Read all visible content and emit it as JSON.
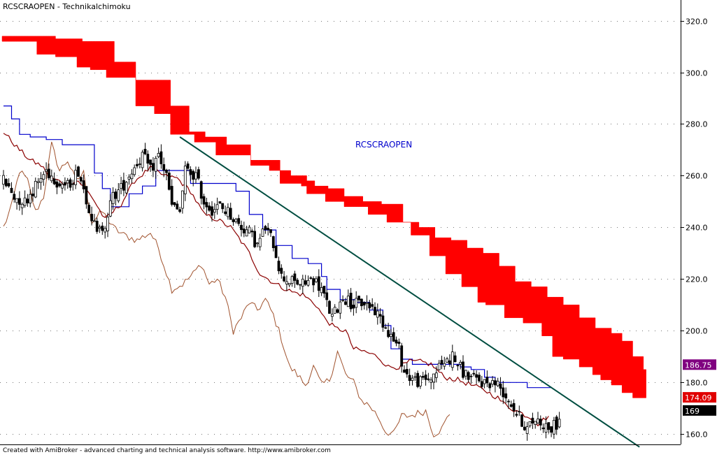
{
  "chart_data": {
    "type": "candlestick",
    "title": "RCSCRAOPEN - Technikalchimoku",
    "annotation": "RCSCRAOPEN",
    "footer": "Created with AmiBroker - advanced charting and technical analysis software. http://www.amibroker.com",
    "ylim": [
      156,
      328
    ],
    "y_ticks": [
      {
        "value": 320,
        "label": "320.0"
      },
      {
        "value": 300,
        "label": "300.0"
      },
      {
        "value": 280,
        "label": "280.0"
      },
      {
        "value": 260,
        "label": "260.0"
      },
      {
        "value": 240,
        "label": "240.0"
      },
      {
        "value": 220,
        "label": "220.0"
      },
      {
        "value": 200,
        "label": "200.0"
      },
      {
        "value": 180,
        "label": "180.0"
      },
      {
        "value": 160,
        "label": "160.0"
      }
    ],
    "grid": true,
    "n_bars": 214,
    "value_badges": [
      {
        "label": "186.75",
        "value": 186.75,
        "color": "#800080"
      },
      {
        "label": "174.09",
        "value": 174.09,
        "color": "#e00000"
      },
      {
        "label": "169",
        "value": 169,
        "color": "#000000"
      }
    ],
    "colors": {
      "cloud": "#ff0000",
      "tenkan": "#8b0000",
      "kijun": "#0000cc",
      "chikou": "#a0522d",
      "trendline": "#004d40",
      "grid": "#777777"
    },
    "cloud": {
      "span_a_keys": [
        [
          0,
          312
        ],
        [
          8,
          312
        ],
        [
          13,
          307
        ],
        [
          20,
          306
        ],
        [
          28,
          302
        ],
        [
          33,
          301
        ],
        [
          39,
          298
        ],
        [
          50,
          287
        ],
        [
          57,
          284
        ],
        [
          63,
          276
        ],
        [
          72,
          273
        ],
        [
          80,
          268
        ],
        [
          93,
          266
        ],
        [
          104,
          257
        ],
        [
          112,
          256
        ],
        [
          114,
          253
        ],
        [
          121,
          250
        ],
        [
          128,
          248
        ],
        [
          137,
          245
        ],
        [
          144,
          242
        ],
        [
          153,
          237
        ],
        [
          160,
          229
        ],
        [
          166,
          222
        ],
        [
          172,
          217
        ],
        [
          178,
          211
        ],
        [
          181,
          210
        ],
        [
          188,
          205
        ],
        [
          195,
          203
        ],
        [
          202,
          198
        ],
        [
          206,
          190
        ],
        [
          210,
          189
        ],
        [
          216,
          186
        ],
        [
          218,
          186
        ],
        [
          221,
          183
        ],
        [
          224,
          181
        ],
        [
          228,
          179
        ],
        [
          232,
          176
        ],
        [
          236,
          174
        ],
        [
          240,
          174
        ]
      ],
      "span_b_keys": [
        [
          0,
          314
        ],
        [
          15,
          314
        ],
        [
          20,
          313
        ],
        [
          30,
          312
        ],
        [
          42,
          304
        ],
        [
          50,
          297
        ],
        [
          56,
          297
        ],
        [
          63,
          287
        ],
        [
          70,
          277
        ],
        [
          76,
          275
        ],
        [
          84,
          272
        ],
        [
          93,
          264
        ],
        [
          100,
          262
        ],
        [
          108,
          260
        ],
        [
          114,
          258
        ],
        [
          117,
          256
        ],
        [
          122,
          255
        ],
        [
          128,
          252
        ],
        [
          135,
          250
        ],
        [
          142,
          249
        ],
        [
          150,
          242
        ],
        [
          156,
          240
        ],
        [
          162,
          236
        ],
        [
          168,
          235
        ],
        [
          174,
          232
        ],
        [
          180,
          230
        ],
        [
          186,
          225
        ],
        [
          192,
          219
        ],
        [
          198,
          217
        ],
        [
          204,
          213
        ],
        [
          210,
          210
        ],
        [
          216,
          205
        ],
        [
          222,
          201
        ],
        [
          228,
          199
        ],
        [
          232,
          196
        ],
        [
          236,
          190
        ],
        [
          240,
          185
        ]
      ]
    },
    "tenkan_keys": [
      [
        0,
        277
      ],
      [
        5,
        271
      ],
      [
        10,
        266
      ],
      [
        14,
        264
      ],
      [
        18,
        259
      ],
      [
        23,
        257
      ],
      [
        28,
        258
      ],
      [
        33,
        252
      ],
      [
        38,
        243
      ],
      [
        44,
        249
      ],
      [
        49,
        258
      ],
      [
        55,
        263
      ],
      [
        60,
        260
      ],
      [
        65,
        259
      ],
      [
        70,
        254
      ],
      [
        75,
        245
      ],
      [
        80,
        243
      ],
      [
        85,
        240
      ],
      [
        88,
        236
      ],
      [
        92,
        230
      ],
      [
        96,
        222
      ],
      [
        102,
        218
      ],
      [
        108,
        215
      ],
      [
        112,
        214
      ],
      [
        117,
        210
      ],
      [
        120,
        205
      ],
      [
        124,
        201
      ],
      [
        128,
        200
      ],
      [
        131,
        193
      ],
      [
        135,
        192
      ],
      [
        140,
        190
      ],
      [
        144,
        186
      ],
      [
        148,
        186
      ],
      [
        152,
        188
      ],
      [
        156,
        188
      ],
      [
        160,
        187
      ],
      [
        165,
        182
      ],
      [
        170,
        181
      ],
      [
        175,
        179
      ],
      [
        180,
        177
      ],
      [
        185,
        174
      ],
      [
        187,
        172
      ],
      [
        190,
        170
      ],
      [
        194,
        168
      ],
      [
        198,
        166
      ],
      [
        200,
        164
      ],
      [
        204,
        167
      ]
    ],
    "kijun_keys": [
      [
        0,
        287
      ],
      [
        3,
        282
      ],
      [
        6,
        276
      ],
      [
        10,
        275
      ],
      [
        16,
        274
      ],
      [
        22,
        272
      ],
      [
        30,
        272
      ],
      [
        34,
        261
      ],
      [
        37,
        255
      ],
      [
        40,
        248
      ],
      [
        47,
        253
      ],
      [
        52,
        256
      ],
      [
        57,
        262
      ],
      [
        66,
        262
      ],
      [
        70,
        257
      ],
      [
        80,
        257
      ],
      [
        87,
        254
      ],
      [
        92,
        245
      ],
      [
        97,
        239
      ],
      [
        102,
        233
      ],
      [
        108,
        228
      ],
      [
        114,
        226
      ],
      [
        119,
        221
      ],
      [
        121,
        216
      ],
      [
        126,
        212
      ],
      [
        132,
        211
      ],
      [
        137,
        208
      ],
      [
        142,
        202
      ],
      [
        145,
        193
      ],
      [
        149,
        189
      ],
      [
        153,
        187
      ],
      [
        157,
        187
      ],
      [
        161,
        187
      ],
      [
        165,
        187
      ],
      [
        171,
        186
      ],
      [
        175,
        185
      ],
      [
        180,
        182
      ],
      [
        184,
        180
      ],
      [
        190,
        180
      ],
      [
        196,
        178
      ],
      [
        204,
        178
      ]
    ],
    "chikou_keys": [
      [
        0,
        240
      ],
      [
        3,
        248
      ],
      [
        6,
        262
      ],
      [
        9,
        258
      ],
      [
        12,
        246
      ],
      [
        15,
        252
      ],
      [
        18,
        272
      ],
      [
        21,
        262
      ],
      [
        24,
        266
      ],
      [
        27,
        258
      ],
      [
        30,
        261
      ],
      [
        33,
        242
      ],
      [
        37,
        246
      ],
      [
        41,
        240
      ],
      [
        45,
        237
      ],
      [
        50,
        235
      ],
      [
        55,
        238
      ],
      [
        58,
        232
      ],
      [
        63,
        216
      ],
      [
        67,
        218
      ],
      [
        71,
        222
      ],
      [
        74,
        226
      ],
      [
        77,
        218
      ],
      [
        80,
        220
      ],
      [
        83,
        213
      ],
      [
        86,
        200
      ],
      [
        89,
        205
      ],
      [
        92,
        211
      ],
      [
        95,
        208
      ],
      [
        98,
        212
      ],
      [
        101,
        206
      ],
      [
        104,
        197
      ],
      [
        107,
        186
      ],
      [
        110,
        183
      ],
      [
        113,
        179
      ],
      [
        116,
        186
      ],
      [
        119,
        179
      ],
      [
        122,
        181
      ],
      [
        125,
        192
      ],
      [
        128,
        183
      ],
      [
        131,
        180
      ],
      [
        134,
        173
      ],
      [
        137,
        171
      ],
      [
        140,
        167
      ],
      [
        143,
        161
      ],
      [
        146,
        160
      ],
      [
        149,
        167
      ],
      [
        152,
        167
      ],
      [
        155,
        168
      ],
      [
        158,
        169
      ],
      [
        161,
        160
      ],
      [
        164,
        162
      ],
      [
        167,
        168
      ]
    ],
    "close_keys": [
      [
        0,
        258
      ],
      [
        4,
        252
      ],
      [
        8,
        250
      ],
      [
        12,
        256
      ],
      [
        16,
        262
      ],
      [
        20,
        258
      ],
      [
        24,
        256
      ],
      [
        28,
        262
      ],
      [
        32,
        248
      ],
      [
        35,
        237
      ],
      [
        38,
        242
      ],
      [
        41,
        252
      ],
      [
        44,
        255
      ],
      [
        48,
        262
      ],
      [
        52,
        268
      ],
      [
        55,
        262
      ],
      [
        58,
        268
      ],
      [
        61,
        260
      ],
      [
        63,
        248
      ],
      [
        66,
        246
      ],
      [
        68,
        262
      ],
      [
        72,
        260
      ],
      [
        75,
        250
      ],
      [
        78,
        247
      ],
      [
        81,
        248
      ],
      [
        84,
        246
      ],
      [
        88,
        241
      ],
      [
        92,
        238
      ],
      [
        95,
        233
      ],
      [
        98,
        240
      ],
      [
        101,
        234
      ],
      [
        104,
        221
      ],
      [
        108,
        219
      ],
      [
        112,
        218
      ],
      [
        116,
        220
      ],
      [
        119,
        216
      ],
      [
        123,
        205
      ],
      [
        127,
        213
      ],
      [
        131,
        210
      ],
      [
        135,
        211
      ],
      [
        138,
        209
      ],
      [
        141,
        205
      ],
      [
        144,
        200
      ],
      [
        146,
        196
      ],
      [
        148,
        193
      ],
      [
        150,
        184
      ],
      [
        152,
        182
      ],
      [
        156,
        180
      ],
      [
        160,
        182
      ],
      [
        164,
        187
      ],
      [
        168,
        190
      ],
      [
        172,
        184
      ],
      [
        176,
        181
      ],
      [
        180,
        180
      ],
      [
        184,
        180
      ],
      [
        186,
        178
      ],
      [
        188,
        175
      ],
      [
        190,
        172
      ],
      [
        192,
        168
      ],
      [
        194,
        165
      ],
      [
        196,
        162
      ],
      [
        199,
        166
      ],
      [
        202,
        164
      ],
      [
        205,
        162
      ],
      [
        208,
        165
      ]
    ],
    "trendline": {
      "start": [
        66,
        275
      ],
      "end": [
        238,
        155
      ]
    }
  }
}
